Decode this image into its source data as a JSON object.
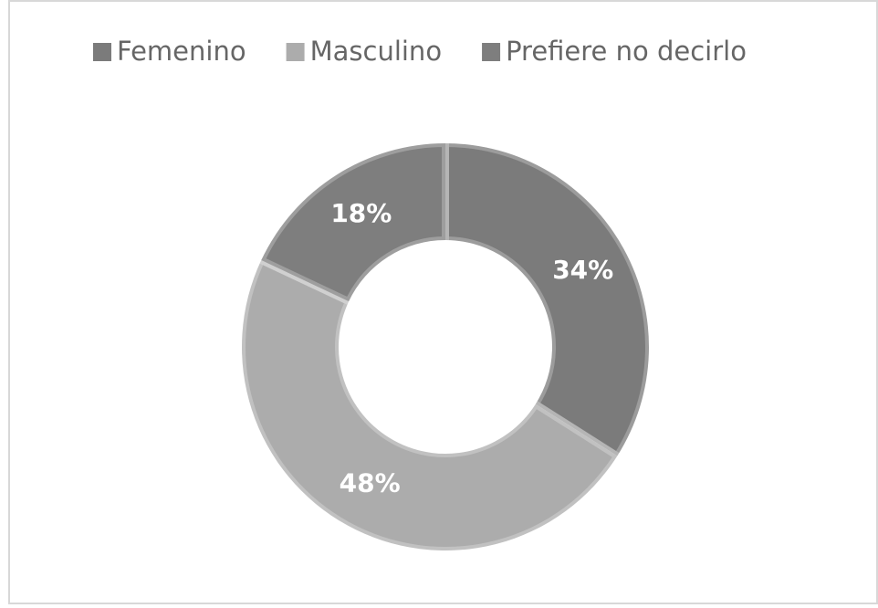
{
  "chart_data": {
    "type": "donut",
    "categories": [
      "Femenino",
      "Masculino",
      "Prefiere no decirlo"
    ],
    "values": [
      34,
      48,
      18
    ],
    "value_labels": [
      "34%",
      "48%",
      "18%"
    ],
    "colors": [
      "#7b7b7b",
      "#acacac",
      "#7e7e7e"
    ],
    "legend": "top"
  }
}
